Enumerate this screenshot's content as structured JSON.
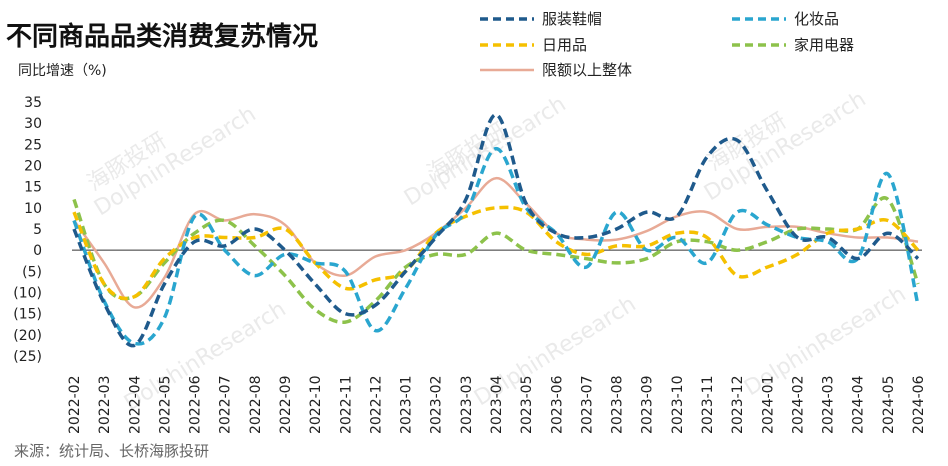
{
  "title": "不同商品品类消费复苏情况",
  "ylabel": "同比增速（%)",
  "source": "来源：统计局、长桥海豚投研",
  "watermarks": [
    "海豚投研",
    "DolphinResearch"
  ],
  "chart_data": {
    "type": "line",
    "x": [
      "2022-02",
      "2022-03",
      "2022-04",
      "2022-05",
      "2022-06",
      "2022-07",
      "2022-08",
      "2022-09",
      "2022-10",
      "2022-11",
      "2022-12",
      "2023-01",
      "2023-02",
      "2023-03",
      "2023-04",
      "2023-05",
      "2023-06",
      "2023-07",
      "2023-08",
      "2023-09",
      "2023-10",
      "2023-11",
      "2023-12",
      "2024-01",
      "2024-02",
      "2024-03",
      "2024-04",
      "2024-05",
      "2024-06"
    ],
    "ylim": [
      -25,
      35
    ],
    "yticks": [
      35,
      30,
      25,
      20,
      15,
      10,
      5,
      0,
      -5,
      -10,
      -15,
      -20,
      -25
    ],
    "ytick_labels": [
      "35",
      "30",
      "25",
      "20",
      "15",
      "10",
      "5",
      "0",
      "(5)",
      "(10)",
      "(15)",
      "(20)",
      "(25)"
    ],
    "series": [
      {
        "name": "服装鞋帽",
        "color": "#1f5a8c",
        "dash": "dash",
        "values": [
          5,
          -12.5,
          -22.5,
          -8,
          2,
          1,
          5,
          0,
          -8,
          -15,
          -13,
          -5,
          3,
          12,
          32,
          11,
          4,
          3,
          5,
          9,
          8,
          22,
          26,
          14,
          3,
          3,
          -2,
          4,
          -2
        ]
      },
      {
        "name": "化妆品",
        "color": "#2aa6cf",
        "dash": "dash",
        "values": [
          7,
          -12,
          -22,
          -16,
          8,
          0,
          -6,
          -1,
          -3,
          -5,
          -19,
          -9,
          3.5,
          9,
          24,
          10,
          4,
          -4,
          9,
          0,
          3,
          -3,
          9,
          6,
          3,
          2,
          -2,
          18,
          -13
        ]
      },
      {
        "name": "日用品",
        "color": "#f5c000",
        "dash": "dash",
        "values": [
          9,
          -8,
          -11,
          -2,
          3,
          3,
          3,
          5,
          -3,
          -9,
          -7,
          -5,
          4,
          8,
          10,
          9,
          2,
          -1,
          1,
          1,
          4,
          3,
          -6,
          -4,
          -1,
          4,
          5,
          7,
          0
        ]
      },
      {
        "name": "家用电器",
        "color": "#8dc24b",
        "dash": "dash",
        "values": [
          12,
          -8,
          -11,
          -3,
          4,
          7,
          1,
          -6,
          -14,
          -17,
          -12,
          -4,
          -1,
          -1,
          4,
          0,
          -1,
          -2,
          -3,
          -2,
          2,
          2,
          0,
          2,
          5,
          5,
          5,
          12,
          -8
        ]
      },
      {
        "name": "限额以上整体",
        "color": "#e8aa96",
        "dash": "solid",
        "values": [
          7,
          -3,
          -13.5,
          -6.5,
          8.5,
          7,
          8.5,
          6,
          -3,
          -6,
          -1.5,
          0,
          4,
          10,
          17,
          11,
          4,
          2.5,
          2.5,
          4.5,
          8,
          9,
          5,
          5.5,
          5.5,
          4,
          3,
          3,
          2
        ]
      }
    ]
  }
}
